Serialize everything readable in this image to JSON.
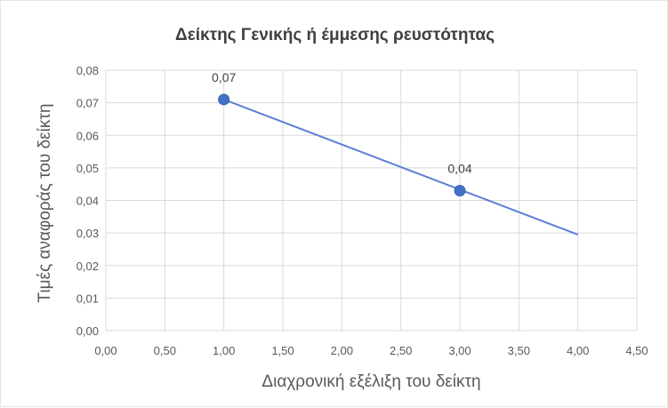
{
  "chart_data": {
    "type": "scatter",
    "title": "Δείκτης Γενικής ή έμμεσης ρευστότητας",
    "xlabel": "Διαχρονική εξέλιξη του δείκτη",
    "ylabel": "Τιμές αναφοράς του δείκτη",
    "xlim": [
      0,
      4.5
    ],
    "ylim": [
      0,
      0.08
    ],
    "x_ticks": [
      "0,00",
      "0,50",
      "1,00",
      "1,50",
      "2,00",
      "2,50",
      "3,00",
      "3,50",
      "4,00",
      "4,50"
    ],
    "y_ticks": [
      "0,00",
      "0,01",
      "0,02",
      "0,03",
      "0,04",
      "0,05",
      "0,06",
      "0,07",
      "0,08"
    ],
    "grid": true,
    "series": [
      {
        "points": [
          {
            "x": 1.0,
            "y": 0.071,
            "label": "0,07"
          },
          {
            "x": 3.0,
            "y": 0.043,
            "label": "0,04"
          }
        ]
      }
    ],
    "trendline": {
      "x_start": 1.0,
      "y_start": 0.071,
      "x_end": 4.0,
      "y_end": 0.0295
    },
    "colors": {
      "series": "#4472c4",
      "trendline": "#5b7fd6",
      "grid": "#d9d9d9"
    }
  }
}
